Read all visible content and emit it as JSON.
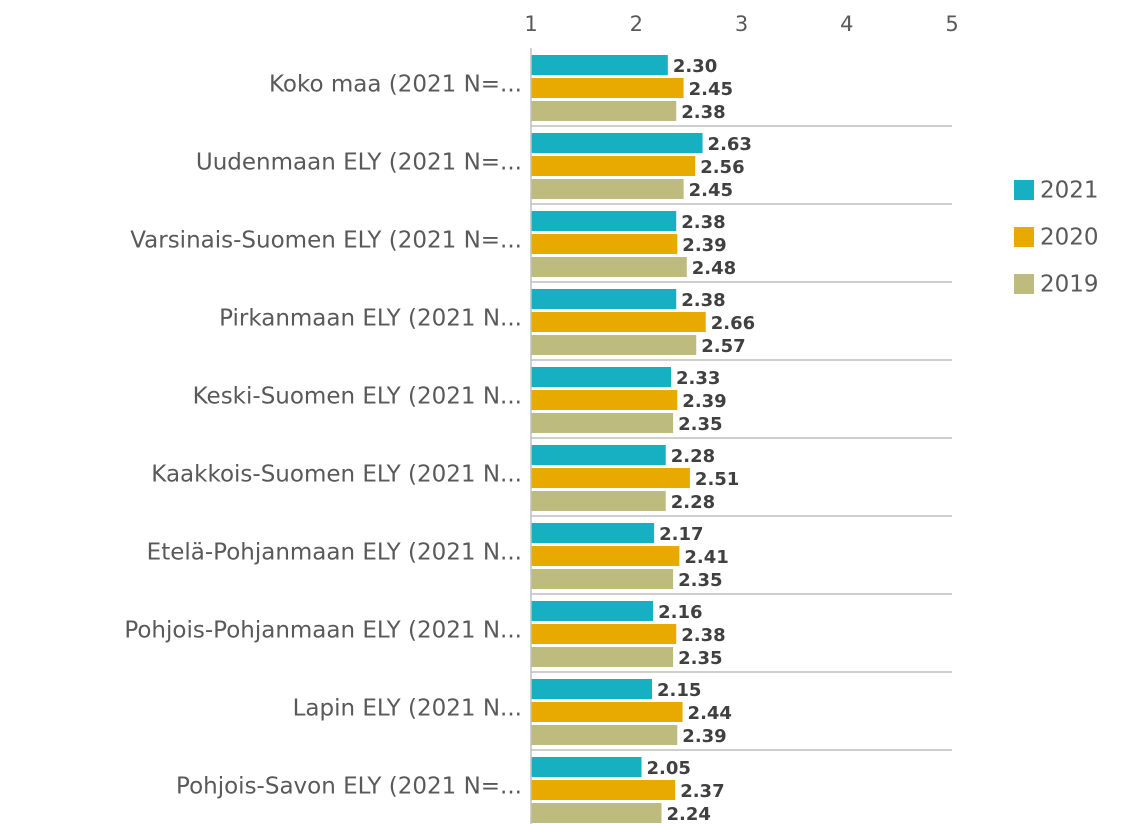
{
  "chart_data": {
    "type": "bar",
    "orientation": "horizontal",
    "categories": [
      "Koko maa (2021 N=...",
      "Uudenmaan ELY (2021 N=...",
      "Varsinais-Suomen ELY (2021 N=...",
      "Pirkanmaan ELY (2021 N...",
      "Keski-Suomen ELY (2021 N...",
      "Kaakkois-Suomen ELY (2021 N...",
      "Etelä-Pohjanmaan ELY (2021 N...",
      "Pohjois-Pohjanmaan ELY (2021 N...",
      "Lapin ELY (2021 N...",
      "Pohjois-Savon ELY (2021 N=..."
    ],
    "series": [
      {
        "name": "2021",
        "color": "#17afc2",
        "values": [
          2.3,
          2.63,
          2.38,
          2.38,
          2.33,
          2.28,
          2.17,
          2.16,
          2.15,
          2.05
        ],
        "value_labels": [
          "2.30",
          "2.63",
          "2.38",
          "2.38",
          "2.33",
          "2.28",
          "2.17",
          "2.16",
          "2.15",
          "2.05"
        ]
      },
      {
        "name": "2020",
        "color": "#e8a900",
        "values": [
          2.45,
          2.56,
          2.39,
          2.66,
          2.39,
          2.51,
          2.41,
          2.38,
          2.44,
          2.37
        ],
        "value_labels": [
          "2.45",
          "2.56",
          "2.39",
          "2.66",
          "2.39",
          "2.51",
          "2.41",
          "2.38",
          "2.44",
          "2.37"
        ]
      },
      {
        "name": "2019",
        "color": "#bdbb7d",
        "values": [
          2.38,
          2.45,
          2.48,
          2.57,
          2.35,
          2.28,
          2.35,
          2.35,
          2.39,
          2.24
        ],
        "value_labels": [
          "2.38",
          "2.45",
          "2.48",
          "2.57",
          "2.35",
          "2.28",
          "2.35",
          "2.35",
          "2.39",
          "2.24"
        ]
      }
    ],
    "xlim": [
      1,
      5
    ],
    "xticks": [
      1,
      2,
      3,
      4,
      5
    ],
    "legend": "right"
  }
}
